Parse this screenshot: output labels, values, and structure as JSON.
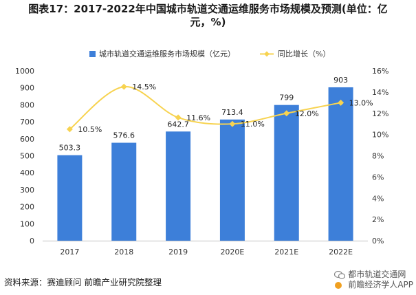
{
  "title_line1": "图表17：2017-2022年中国城市轨道交通运维服务市场规模及预测(单位：亿",
  "title_line2": "元，%)",
  "source": "资料来源：赛迪顾问 前瞻产业研究院整理",
  "watermark": {
    "line1": "都市轨道交通网",
    "line2": "前瞻经济学人APP"
  },
  "chart_data": {
    "type": "bar",
    "categories": [
      "2017",
      "2018",
      "2019",
      "2020E",
      "2021E",
      "2022E"
    ],
    "series": [
      {
        "name": "城市轨道交通运维服务市场规模（亿元）",
        "type": "bar",
        "axis": "left",
        "values": [
          503.3,
          576.6,
          642.7,
          713.4,
          799,
          903
        ],
        "labels": [
          "503.3",
          "576.6",
          "642.7",
          "713.4",
          "799",
          "903"
        ],
        "color": "#3d7fd9"
      },
      {
        "name": "同比增长（%）",
        "type": "line",
        "axis": "right",
        "values": [
          10.5,
          14.5,
          11.6,
          11.0,
          12.0,
          13.0
        ],
        "labels": [
          "10.5%",
          "14.5%",
          "11.6%",
          "11.0%",
          "12.0%",
          "13.0%"
        ],
        "color": "#f7d350"
      }
    ],
    "y_left": {
      "min": 0,
      "max": 1000,
      "step": 100,
      "ticks": [
        "0",
        "100",
        "200",
        "300",
        "400",
        "500",
        "600",
        "700",
        "800",
        "900",
        "1000"
      ]
    },
    "y_right": {
      "min": 0,
      "max": 16,
      "step": 2,
      "ticks": [
        "0%",
        "2%",
        "4%",
        "6%",
        "8%",
        "10%",
        "12%",
        "14%",
        "16%"
      ]
    },
    "legend_position": "top",
    "grid": false
  }
}
